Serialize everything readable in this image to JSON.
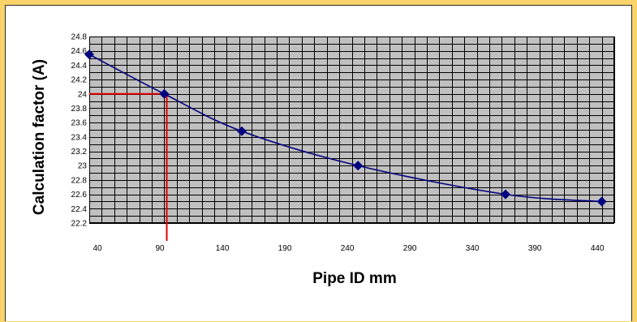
{
  "chart_data": {
    "type": "line",
    "title": "",
    "xlabel": "Pipe ID mm",
    "ylabel": "Calculation factor (A)",
    "xlim": [
      40,
      460
    ],
    "ylim": [
      22.2,
      24.8
    ],
    "x_ticks": [
      "40",
      "90",
      "140",
      "190",
      "240",
      "290",
      "340",
      "390",
      "440"
    ],
    "y_ticks": [
      "22.2",
      "22.4",
      "22.6",
      "22.8",
      "23",
      "23.2",
      "23.4",
      "23.6",
      "23.8",
      "24",
      "24.2",
      "24.4",
      "24.6",
      "24.8"
    ],
    "grid": true,
    "legend": false,
    "series": [
      {
        "color": "#000080",
        "marker": "diamond",
        "points": [
          {
            "x": 40,
            "y": 24.55
          },
          {
            "x": 100,
            "y": 24.0
          },
          {
            "x": 162,
            "y": 23.48
          },
          {
            "x": 255,
            "y": 23.0
          },
          {
            "x": 373,
            "y": 22.6
          },
          {
            "x": 450,
            "y": 22.5
          }
        ]
      }
    ],
    "reference_lines": {
      "color": "#e00000",
      "x": 102,
      "y": 24.0
    },
    "colors": {
      "plot_background": "#c0c0c0",
      "grid": "#000000",
      "outer_background": "#fbd36b"
    }
  }
}
